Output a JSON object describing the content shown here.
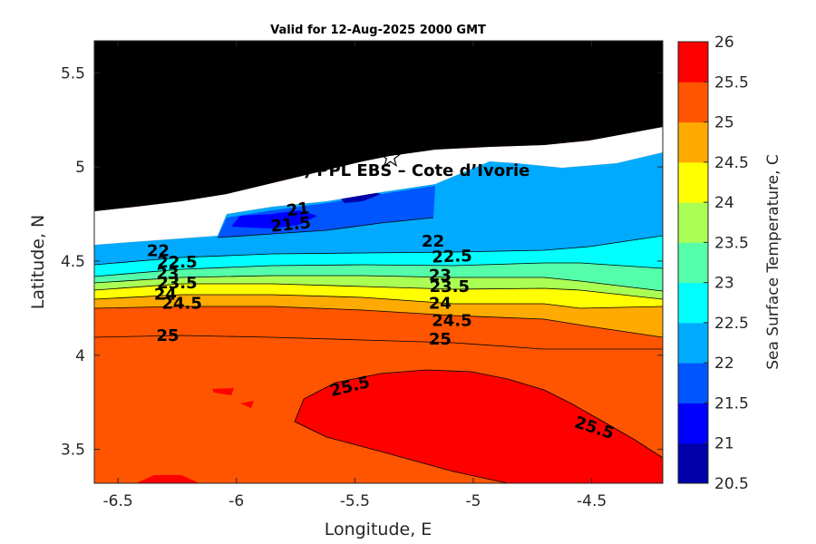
{
  "title": "Valid for 12-Aug-2025 2000 GMT",
  "site_label": "A (ONHYM) PPL EBS  – Cote d’Ivorie",
  "site_marker": {
    "lon": -5.35,
    "lat": 5.05,
    "icon": "star-icon"
  },
  "chart_data": {
    "type": "heatmap",
    "description_type": "filled contour map",
    "xlabel": "Longitude, E",
    "ylabel": "Latitude, N",
    "xlim": [
      -6.6,
      -4.2
    ],
    "ylim": [
      3.32,
      5.67
    ],
    "xticks": [
      -6.5,
      -6,
      -5.5,
      -5,
      -4.5
    ],
    "xtick_labels": [
      "-6.5",
      "-6",
      "-5.5",
      "-5",
      "-4.5"
    ],
    "yticks": [
      3.5,
      4,
      4.5,
      5,
      5.5
    ],
    "ytick_labels": [
      "3.5",
      "4",
      "4.5",
      "5",
      "5.5"
    ],
    "colorbar": {
      "label": "Sea Surface Temperature, C",
      "levels": [
        20.5,
        21,
        21.5,
        22,
        22.5,
        23,
        23.5,
        24,
        24.5,
        25,
        25.5,
        26
      ],
      "level_labels": [
        "20.5",
        "21",
        "21.5",
        "22",
        "22.5",
        "23",
        "23.5",
        "24",
        "24.5",
        "25",
        "25.5",
        "26"
      ],
      "colors": [
        "#0000aa",
        "#0000ff",
        "#0055ff",
        "#00aaff",
        "#00ffff",
        "#55ffaa",
        "#aaff55",
        "#ffff00",
        "#ffaa00",
        "#ff5500",
        "#ff0000"
      ]
    },
    "land_color": "#000000",
    "nodata_color": "#ffffff",
    "contour_labels": [
      {
        "text": "21",
        "lon": -5.74,
        "lat": 4.77,
        "angle": -8
      },
      {
        "text": "21.5",
        "lon": -5.77,
        "lat": 4.69,
        "angle": -6
      },
      {
        "text": "22",
        "lon": -6.33,
        "lat": 4.55,
        "angle": 0
      },
      {
        "text": "22.5",
        "lon": -6.25,
        "lat": 4.49,
        "angle": 0
      },
      {
        "text": "23",
        "lon": -6.29,
        "lat": 4.43,
        "angle": 0
      },
      {
        "text": "23.5",
        "lon": -6.25,
        "lat": 4.38,
        "angle": 0
      },
      {
        "text": "24",
        "lon": -6.3,
        "lat": 4.32,
        "angle": 0
      },
      {
        "text": "24.5",
        "lon": -6.23,
        "lat": 4.27,
        "angle": 0
      },
      {
        "text": "25",
        "lon": -6.29,
        "lat": 4.1,
        "angle": 0
      },
      {
        "text": "22",
        "lon": -5.17,
        "lat": 4.6,
        "angle": 0
      },
      {
        "text": "22.5",
        "lon": -5.09,
        "lat": 4.52,
        "angle": -2
      },
      {
        "text": "23",
        "lon": -5.14,
        "lat": 4.42,
        "angle": 0
      },
      {
        "text": "23.5",
        "lon": -5.1,
        "lat": 4.36,
        "angle": 0
      },
      {
        "text": "24",
        "lon": -5.14,
        "lat": 4.27,
        "angle": 0
      },
      {
        "text": "24.5",
        "lon": -5.09,
        "lat": 4.18,
        "angle": 0
      },
      {
        "text": "25",
        "lon": -5.14,
        "lat": 4.08,
        "angle": 0
      },
      {
        "text": "25.5",
        "lon": -5.52,
        "lat": 3.83,
        "angle": -14
      },
      {
        "text": "25.5",
        "lon": -4.49,
        "lat": 3.61,
        "angle": 18
      }
    ]
  }
}
